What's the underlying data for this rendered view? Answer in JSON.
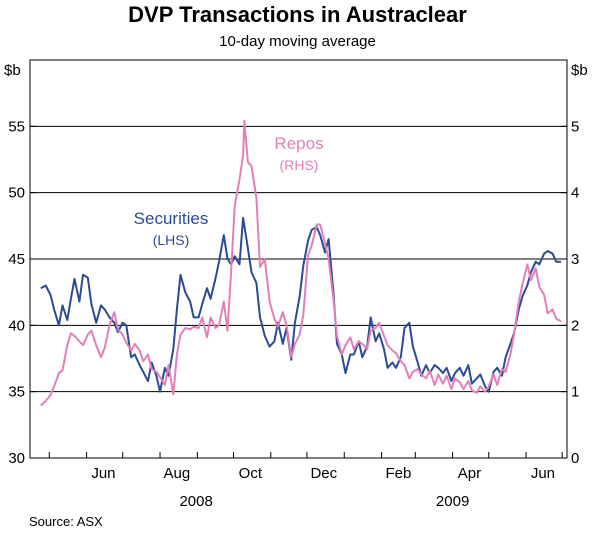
{
  "chart_data": {
    "type": "line",
    "title": "DVP Transactions in Austraclear",
    "subtitle": "10-day moving average",
    "left_unit": "$b",
    "right_unit": "$b",
    "left_axis": {
      "min": 30,
      "max": 60,
      "ticks": [
        "30",
        "35",
        "40",
        "45",
        "50",
        "55"
      ]
    },
    "right_axis": {
      "min": 0,
      "max": 6,
      "ticks": [
        "0",
        "1",
        "2",
        "3",
        "4",
        "5"
      ]
    },
    "x_range": [
      "2008-04-15",
      "2009-07-05"
    ],
    "x_month_labels": [
      {
        "label": "Jun",
        "date": "2008-06-15"
      },
      {
        "label": "Aug",
        "date": "2008-08-15"
      },
      {
        "label": "Oct",
        "date": "2008-10-15"
      },
      {
        "label": "Dec",
        "date": "2008-12-15"
      },
      {
        "label": "Feb",
        "date": "2009-02-15"
      },
      {
        "label": "Apr",
        "date": "2009-04-15"
      },
      {
        "label": "Jun",
        "date": "2009-06-15"
      }
    ],
    "x_month_boundaries": [
      "2008-05-01",
      "2008-06-01",
      "2008-07-01",
      "2008-08-01",
      "2008-09-01",
      "2008-10-01",
      "2008-11-01",
      "2008-12-01",
      "2009-01-01",
      "2009-02-01",
      "2009-03-01",
      "2009-04-01",
      "2009-05-01",
      "2009-06-01",
      "2009-07-01"
    ],
    "year_labels": [
      {
        "label": "2008",
        "date": "2008-08-31"
      },
      {
        "label": "2009",
        "date": "2009-04-01"
      }
    ],
    "series": [
      {
        "name": "Securities",
        "annotation": [
          "Securities",
          "(LHS)"
        ],
        "axis": "left",
        "color": "#2b4a96",
        "points": [
          [
            "2008-04-24",
            42.8
          ],
          [
            "2008-04-28",
            43.0
          ],
          [
            "2008-05-02",
            42.3
          ],
          [
            "2008-05-05",
            41.2
          ],
          [
            "2008-05-09",
            40.0
          ],
          [
            "2008-05-12",
            41.5
          ],
          [
            "2008-05-16",
            40.4
          ],
          [
            "2008-05-19",
            42.0
          ],
          [
            "2008-05-22",
            43.5
          ],
          [
            "2008-05-26",
            41.8
          ],
          [
            "2008-05-29",
            43.8
          ],
          [
            "2008-06-02",
            43.6
          ],
          [
            "2008-06-05",
            41.6
          ],
          [
            "2008-06-09",
            40.2
          ],
          [
            "2008-06-13",
            41.5
          ],
          [
            "2008-06-16",
            41.2
          ],
          [
            "2008-06-20",
            40.6
          ],
          [
            "2008-06-24",
            40.2
          ],
          [
            "2008-06-27",
            39.5
          ],
          [
            "2008-07-01",
            40.2
          ],
          [
            "2008-07-04",
            40.0
          ],
          [
            "2008-07-08",
            37.6
          ],
          [
            "2008-07-11",
            37.8
          ],
          [
            "2008-07-15",
            37.0
          ],
          [
            "2008-07-18",
            36.5
          ],
          [
            "2008-07-22",
            35.8
          ],
          [
            "2008-07-25",
            37.2
          ],
          [
            "2008-07-29",
            36.2
          ],
          [
            "2008-08-01",
            35.0
          ],
          [
            "2008-08-05",
            36.8
          ],
          [
            "2008-08-08",
            36.2
          ],
          [
            "2008-08-12",
            38.2
          ],
          [
            "2008-08-15",
            41.2
          ],
          [
            "2008-08-18",
            43.8
          ],
          [
            "2008-08-22",
            42.5
          ],
          [
            "2008-08-26",
            41.8
          ],
          [
            "2008-08-29",
            40.6
          ],
          [
            "2008-09-02",
            40.6
          ],
          [
            "2008-09-05",
            41.6
          ],
          [
            "2008-09-09",
            42.8
          ],
          [
            "2008-09-12",
            42.0
          ],
          [
            "2008-09-16",
            43.5
          ],
          [
            "2008-09-19",
            44.8
          ],
          [
            "2008-09-23",
            46.8
          ],
          [
            "2008-09-26",
            45.0
          ],
          [
            "2008-09-29",
            44.6
          ],
          [
            "2008-10-02",
            45.2
          ],
          [
            "2008-10-06",
            44.6
          ],
          [
            "2008-10-09",
            48.1
          ],
          [
            "2008-10-13",
            45.8
          ],
          [
            "2008-10-16",
            44.0
          ],
          [
            "2008-10-20",
            43.2
          ],
          [
            "2008-10-23",
            40.6
          ],
          [
            "2008-10-27",
            39.2
          ],
          [
            "2008-10-31",
            38.4
          ],
          [
            "2008-11-04",
            38.8
          ],
          [
            "2008-11-07",
            40.2
          ],
          [
            "2008-11-11",
            38.6
          ],
          [
            "2008-11-14",
            39.8
          ],
          [
            "2008-11-18",
            37.4
          ],
          [
            "2008-11-21",
            40.2
          ],
          [
            "2008-11-25",
            42.2
          ],
          [
            "2008-11-28",
            44.5
          ],
          [
            "2008-12-02",
            46.4
          ],
          [
            "2008-12-05",
            47.2
          ],
          [
            "2008-12-09",
            47.4
          ],
          [
            "2008-12-12",
            46.8
          ],
          [
            "2008-12-16",
            45.5
          ],
          [
            "2008-12-19",
            46.5
          ],
          [
            "2008-12-23",
            42.5
          ],
          [
            "2008-12-26",
            38.6
          ],
          [
            "2008-12-30",
            37.8
          ],
          [
            "2009-01-02",
            36.4
          ],
          [
            "2009-01-06",
            37.8
          ],
          [
            "2009-01-09",
            37.8
          ],
          [
            "2009-01-13",
            38.8
          ],
          [
            "2009-01-16",
            37.6
          ],
          [
            "2009-01-20",
            38.4
          ],
          [
            "2009-01-23",
            40.6
          ],
          [
            "2009-01-27",
            38.8
          ],
          [
            "2009-01-30",
            39.4
          ],
          [
            "2009-02-03",
            38.2
          ],
          [
            "2009-02-06",
            36.8
          ],
          [
            "2009-02-10",
            37.2
          ],
          [
            "2009-02-13",
            36.8
          ],
          [
            "2009-02-17",
            37.6
          ],
          [
            "2009-02-20",
            39.8
          ],
          [
            "2009-02-24",
            40.2
          ],
          [
            "2009-02-27",
            38.4
          ],
          [
            "2009-03-03",
            37.2
          ],
          [
            "2009-03-06",
            36.2
          ],
          [
            "2009-03-10",
            37.0
          ],
          [
            "2009-03-13",
            36.4
          ],
          [
            "2009-03-17",
            37.0
          ],
          [
            "2009-03-20",
            36.8
          ],
          [
            "2009-03-24",
            36.4
          ],
          [
            "2009-03-27",
            36.8
          ],
          [
            "2009-03-31",
            35.8
          ],
          [
            "2009-04-03",
            36.4
          ],
          [
            "2009-04-07",
            36.8
          ],
          [
            "2009-04-10",
            36.2
          ],
          [
            "2009-04-14",
            37.0
          ],
          [
            "2009-04-17",
            35.6
          ],
          [
            "2009-04-21",
            36.0
          ],
          [
            "2009-04-24",
            36.3
          ],
          [
            "2009-04-28",
            35.4
          ],
          [
            "2009-05-01",
            35.0
          ],
          [
            "2009-05-05",
            36.5
          ],
          [
            "2009-05-08",
            36.8
          ],
          [
            "2009-05-12",
            36.2
          ],
          [
            "2009-05-15",
            37.6
          ],
          [
            "2009-05-19",
            38.6
          ],
          [
            "2009-05-22",
            39.4
          ],
          [
            "2009-05-26",
            41.2
          ],
          [
            "2009-05-29",
            42.2
          ],
          [
            "2009-06-02",
            43.0
          ],
          [
            "2009-06-05",
            44.0
          ],
          [
            "2009-06-09",
            44.8
          ],
          [
            "2009-06-12",
            44.6
          ],
          [
            "2009-06-16",
            45.4
          ],
          [
            "2009-06-19",
            45.6
          ],
          [
            "2009-06-23",
            45.4
          ],
          [
            "2009-06-26",
            44.8
          ],
          [
            "2009-06-30",
            44.8
          ]
        ]
      },
      {
        "name": "Repos",
        "annotation": [
          "Repos",
          "(RHS)"
        ],
        "axis": "right",
        "color": "#e37fb8",
        "points": [
          [
            "2008-04-24",
            0.79
          ],
          [
            "2008-04-28",
            0.86
          ],
          [
            "2008-05-02",
            0.95
          ],
          [
            "2008-05-05",
            1.08
          ],
          [
            "2008-05-09",
            1.28
          ],
          [
            "2008-05-12",
            1.32
          ],
          [
            "2008-05-16",
            1.7
          ],
          [
            "2008-05-19",
            1.88
          ],
          [
            "2008-05-22",
            1.84
          ],
          [
            "2008-05-26",
            1.76
          ],
          [
            "2008-05-29",
            1.7
          ],
          [
            "2008-06-02",
            1.86
          ],
          [
            "2008-06-05",
            1.92
          ],
          [
            "2008-06-09",
            1.7
          ],
          [
            "2008-06-13",
            1.52
          ],
          [
            "2008-06-16",
            1.66
          ],
          [
            "2008-06-20",
            2.0
          ],
          [
            "2008-06-24",
            2.2
          ],
          [
            "2008-06-27",
            1.94
          ],
          [
            "2008-07-01",
            1.86
          ],
          [
            "2008-07-04",
            1.74
          ],
          [
            "2008-07-08",
            1.62
          ],
          [
            "2008-07-11",
            1.72
          ],
          [
            "2008-07-15",
            1.62
          ],
          [
            "2008-07-18",
            1.46
          ],
          [
            "2008-07-22",
            1.56
          ],
          [
            "2008-07-25",
            1.34
          ],
          [
            "2008-07-29",
            1.3
          ],
          [
            "2008-08-01",
            1.22
          ],
          [
            "2008-08-05",
            1.1
          ],
          [
            "2008-08-08",
            1.4
          ],
          [
            "2008-08-12",
            0.96
          ],
          [
            "2008-08-15",
            1.56
          ],
          [
            "2008-08-18",
            1.86
          ],
          [
            "2008-08-22",
            1.96
          ],
          [
            "2008-08-26",
            1.94
          ],
          [
            "2008-08-29",
            1.98
          ],
          [
            "2008-09-02",
            1.96
          ],
          [
            "2008-09-05",
            2.12
          ],
          [
            "2008-09-09",
            1.82
          ],
          [
            "2008-09-12",
            2.12
          ],
          [
            "2008-09-16",
            1.96
          ],
          [
            "2008-09-19",
            2.0
          ],
          [
            "2008-09-23",
            2.36
          ],
          [
            "2008-09-26",
            1.92
          ],
          [
            "2008-09-29",
            2.8
          ],
          [
            "2008-10-02",
            3.8
          ],
          [
            "2008-10-06",
            4.2
          ],
          [
            "2008-10-09",
            4.56
          ],
          [
            "2008-10-10",
            5.08
          ],
          [
            "2008-10-13",
            4.46
          ],
          [
            "2008-10-16",
            4.4
          ],
          [
            "2008-10-20",
            3.92
          ],
          [
            "2008-10-23",
            2.88
          ],
          [
            "2008-10-27",
            3.0
          ],
          [
            "2008-10-31",
            2.36
          ],
          [
            "2008-11-04",
            2.1
          ],
          [
            "2008-11-07",
            1.98
          ],
          [
            "2008-11-11",
            2.2
          ],
          [
            "2008-11-14",
            2.0
          ],
          [
            "2008-11-18",
            1.52
          ],
          [
            "2008-11-21",
            1.72
          ],
          [
            "2008-11-25",
            1.86
          ],
          [
            "2008-11-28",
            2.16
          ],
          [
            "2008-12-02",
            3.06
          ],
          [
            "2008-12-05",
            3.2
          ],
          [
            "2008-12-09",
            3.52
          ],
          [
            "2008-12-12",
            3.52
          ],
          [
            "2008-12-16",
            3.24
          ],
          [
            "2008-12-19",
            3.0
          ],
          [
            "2008-12-23",
            2.4
          ],
          [
            "2008-12-26",
            1.84
          ],
          [
            "2008-12-30",
            1.56
          ],
          [
            "2009-01-02",
            1.7
          ],
          [
            "2009-01-06",
            1.82
          ],
          [
            "2009-01-09",
            1.64
          ],
          [
            "2009-01-13",
            1.76
          ],
          [
            "2009-01-16",
            1.72
          ],
          [
            "2009-01-20",
            1.64
          ],
          [
            "2009-01-23",
            1.92
          ],
          [
            "2009-01-27",
            1.96
          ],
          [
            "2009-01-30",
            2.04
          ],
          [
            "2009-02-03",
            1.84
          ],
          [
            "2009-02-06",
            1.7
          ],
          [
            "2009-02-10",
            1.62
          ],
          [
            "2009-02-13",
            1.58
          ],
          [
            "2009-02-17",
            1.46
          ],
          [
            "2009-02-20",
            1.4
          ],
          [
            "2009-02-24",
            1.2
          ],
          [
            "2009-02-27",
            1.3
          ],
          [
            "2009-03-03",
            1.34
          ],
          [
            "2009-03-06",
            1.26
          ],
          [
            "2009-03-10",
            1.2
          ],
          [
            "2009-03-13",
            1.32
          ],
          [
            "2009-03-17",
            1.1
          ],
          [
            "2009-03-20",
            1.26
          ],
          [
            "2009-03-24",
            1.12
          ],
          [
            "2009-03-27",
            1.24
          ],
          [
            "2009-03-31",
            1.04
          ],
          [
            "2009-04-03",
            1.2
          ],
          [
            "2009-04-07",
            1.14
          ],
          [
            "2009-04-10",
            1.04
          ],
          [
            "2009-04-14",
            1.16
          ],
          [
            "2009-04-17",
            1.02
          ],
          [
            "2009-04-21",
            0.98
          ],
          [
            "2009-04-24",
            1.08
          ],
          [
            "2009-04-28",
            1.0
          ],
          [
            "2009-05-01",
            1.08
          ],
          [
            "2009-05-05",
            1.26
          ],
          [
            "2009-05-08",
            1.1
          ],
          [
            "2009-05-12",
            1.34
          ],
          [
            "2009-05-15",
            1.3
          ],
          [
            "2009-05-19",
            1.56
          ],
          [
            "2009-05-22",
            1.86
          ],
          [
            "2009-05-26",
            2.36
          ],
          [
            "2009-05-29",
            2.62
          ],
          [
            "2009-06-02",
            2.92
          ],
          [
            "2009-06-05",
            2.68
          ],
          [
            "2009-06-09",
            2.86
          ],
          [
            "2009-06-12",
            2.58
          ],
          [
            "2009-06-16",
            2.46
          ],
          [
            "2009-06-19",
            2.18
          ],
          [
            "2009-06-23",
            2.24
          ],
          [
            "2009-06-26",
            2.1
          ],
          [
            "2009-06-30",
            2.06
          ]
        ]
      }
    ],
    "source": "Source: ASX"
  }
}
